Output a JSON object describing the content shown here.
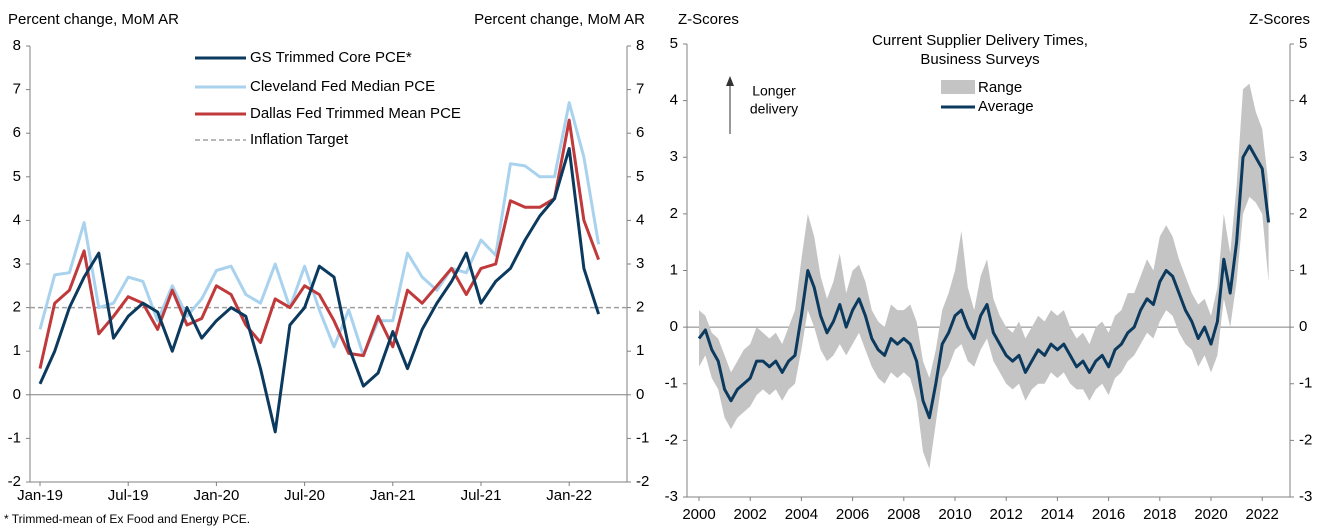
{
  "chart_data": [
    {
      "type": "line",
      "ylabel": "Percent change, MoM AR",
      "y2label": "Percent change, MoM AR",
      "categories": [
        "Jan-19",
        null,
        null,
        null,
        null,
        null,
        "Jul-19",
        null,
        null,
        null,
        null,
        null,
        "Jan-20",
        null,
        null,
        null,
        null,
        null,
        "Jul-20",
        null,
        null,
        null,
        null,
        null,
        "Jan-21",
        null,
        null,
        null,
        null,
        null,
        "Jul-21",
        null,
        null,
        null,
        null,
        null,
        "Jan-22",
        null,
        null
      ],
      "series": [
        {
          "name": "GS Trimmed Core PCE*",
          "color": "#0b3a5e",
          "values": [
            0.25,
            1.0,
            2.0,
            2.7,
            3.25,
            1.3,
            1.8,
            2.1,
            1.9,
            1.0,
            2.0,
            1.3,
            1.7,
            2.0,
            1.8,
            0.6,
            -0.85,
            1.6,
            2.0,
            2.95,
            2.7,
            1.1,
            0.2,
            0.5,
            1.45,
            0.6,
            1.5,
            2.1,
            2.6,
            3.25,
            2.1,
            2.6,
            2.9,
            3.55,
            4.1,
            4.5,
            5.65,
            2.9,
            1.85
          ]
        },
        {
          "name": "Cleveland Fed Median PCE",
          "color": "#a9d2ee",
          "values": [
            1.5,
            2.75,
            2.8,
            3.95,
            2.0,
            2.1,
            2.7,
            2.6,
            1.7,
            2.5,
            1.8,
            2.2,
            2.85,
            2.95,
            2.3,
            2.1,
            3.0,
            2.0,
            2.95,
            1.95,
            1.1,
            1.95,
            0.9,
            1.7,
            1.7,
            3.25,
            2.7,
            2.4,
            2.9,
            2.8,
            3.55,
            3.2,
            5.3,
            5.25,
            5.0,
            5.0,
            6.7,
            5.45,
            3.45
          ]
        },
        {
          "name": "Dallas Fed Trimmed Mean PCE",
          "color": "#c0393b",
          "values": [
            0.6,
            2.1,
            2.4,
            3.3,
            1.4,
            1.8,
            2.25,
            2.1,
            1.5,
            2.4,
            1.6,
            1.75,
            2.5,
            2.3,
            1.6,
            1.2,
            2.2,
            2.0,
            2.5,
            2.3,
            1.7,
            0.95,
            0.9,
            1.8,
            1.1,
            2.4,
            2.1,
            2.5,
            2.9,
            2.3,
            2.9,
            3.0,
            4.45,
            4.3,
            4.3,
            4.5,
            6.3,
            4.0,
            3.1
          ]
        }
      ],
      "reference_line": {
        "name": "Inflation Target",
        "value": 2,
        "color": "#a0a0a0"
      },
      "ylim": [
        -2,
        8
      ],
      "yticks": [
        -2,
        -1,
        0,
        1,
        2,
        3,
        4,
        5,
        6,
        7,
        8
      ],
      "y2lim": [
        -2,
        8
      ],
      "y2ticks": [
        -2,
        -1,
        0,
        1,
        2,
        3,
        4,
        5,
        6,
        7,
        8
      ],
      "footnote": "* Trimmed-mean of Ex Food and Energy PCE."
    },
    {
      "type": "range_line",
      "title": [
        "Current Supplier Delivery Times,",
        "Business Surveys"
      ],
      "ylabel": "Z-Scores",
      "y2label": "Z-Scores",
      "annotation": [
        "Longer",
        "delivery"
      ],
      "x": [
        2000,
        2000.25,
        2000.5,
        2000.75,
        2001,
        2001.25,
        2001.5,
        2001.75,
        2002,
        2002.25,
        2002.5,
        2002.75,
        2003,
        2003.25,
        2003.5,
        2003.75,
        2004,
        2004.25,
        2004.5,
        2004.75,
        2005,
        2005.25,
        2005.5,
        2005.75,
        2006,
        2006.25,
        2006.5,
        2006.75,
        2007,
        2007.25,
        2007.5,
        2007.75,
        2008,
        2008.25,
        2008.5,
        2008.75,
        2009,
        2009.25,
        2009.5,
        2009.75,
        2010,
        2010.25,
        2010.5,
        2010.75,
        2011,
        2011.25,
        2011.5,
        2011.75,
        2012,
        2012.25,
        2012.5,
        2012.75,
        2013,
        2013.25,
        2013.5,
        2013.75,
        2014,
        2014.25,
        2014.5,
        2014.75,
        2015,
        2015.25,
        2015.5,
        2015.75,
        2016,
        2016.25,
        2016.5,
        2016.75,
        2017,
        2017.25,
        2017.5,
        2017.75,
        2018,
        2018.25,
        2018.5,
        2018.75,
        2019,
        2019.25,
        2019.5,
        2019.75,
        2020,
        2020.25,
        2020.5,
        2020.75,
        2021,
        2021.25,
        2021.5,
        2021.75,
        2022,
        2022.25
      ],
      "range": {
        "name": "Range",
        "color": "#c4c4c4",
        "high": [
          0.3,
          0.2,
          -0.1,
          -0.2,
          -0.5,
          -0.8,
          -0.6,
          -0.4,
          -0.3,
          0.0,
          -0.1,
          -0.2,
          -0.1,
          -0.3,
          0.0,
          0.3,
          1.2,
          2.0,
          1.6,
          0.9,
          0.5,
          0.8,
          1.3,
          0.6,
          1.0,
          1.1,
          0.8,
          0.3,
          0.1,
          0.0,
          0.4,
          0.3,
          0.3,
          0.4,
          0.1,
          -0.6,
          -0.9,
          -0.4,
          0.3,
          0.6,
          1.0,
          1.7,
          0.7,
          0.3,
          0.9,
          1.2,
          0.5,
          0.2,
          0.0,
          -0.1,
          0.1,
          -0.2,
          0.0,
          0.2,
          0.1,
          0.3,
          0.2,
          0.3,
          0.0,
          -0.2,
          -0.1,
          -0.3,
          0.0,
          0.1,
          -0.1,
          0.2,
          0.3,
          0.6,
          0.6,
          0.9,
          1.2,
          1.0,
          1.6,
          1.8,
          1.6,
          1.2,
          0.9,
          0.6,
          0.4,
          0.5,
          0.2,
          0.7,
          2.0,
          1.3,
          2.5,
          4.2,
          4.3,
          3.8,
          3.5,
          2.5
        ],
        "low": [
          -0.7,
          -0.5,
          -0.9,
          -1.1,
          -1.6,
          -1.8,
          -1.6,
          -1.5,
          -1.4,
          -1.2,
          -1.1,
          -1.2,
          -1.1,
          -1.3,
          -1.1,
          -1.0,
          -0.4,
          0.3,
          0.0,
          -0.4,
          -0.6,
          -0.5,
          -0.3,
          -0.5,
          -0.3,
          -0.1,
          -0.4,
          -0.7,
          -0.9,
          -1.0,
          -0.8,
          -0.9,
          -0.8,
          -0.9,
          -1.3,
          -2.2,
          -2.5,
          -1.7,
          -0.9,
          -0.7,
          -0.4,
          -0.3,
          -0.6,
          -0.7,
          -0.4,
          -0.2,
          -0.6,
          -0.8,
          -1.0,
          -1.1,
          -1.0,
          -1.3,
          -1.1,
          -1.0,
          -1.0,
          -0.8,
          -0.9,
          -0.8,
          -1.0,
          -1.1,
          -1.1,
          -1.3,
          -1.1,
          -1.0,
          -1.2,
          -0.9,
          -0.8,
          -0.6,
          -0.5,
          -0.3,
          -0.1,
          -0.2,
          0.1,
          0.3,
          0.2,
          -0.1,
          -0.3,
          -0.4,
          -0.7,
          -0.5,
          -0.8,
          -0.5,
          0.5,
          0.0,
          0.8,
          2.0,
          2.3,
          2.2,
          2.0,
          0.8
        ]
      },
      "series": [
        {
          "name": "Average",
          "color": "#0b3a5e",
          "values": [
            -0.2,
            -0.05,
            -0.4,
            -0.6,
            -1.1,
            -1.3,
            -1.1,
            -1.0,
            -0.9,
            -0.6,
            -0.6,
            -0.7,
            -0.6,
            -0.8,
            -0.6,
            -0.5,
            0.2,
            1.0,
            0.7,
            0.2,
            -0.1,
            0.1,
            0.4,
            0.0,
            0.3,
            0.5,
            0.2,
            -0.2,
            -0.4,
            -0.5,
            -0.2,
            -0.3,
            -0.2,
            -0.3,
            -0.6,
            -1.3,
            -1.6,
            -1.0,
            -0.3,
            -0.1,
            0.2,
            0.3,
            0.0,
            -0.2,
            0.2,
            0.4,
            -0.1,
            -0.3,
            -0.5,
            -0.6,
            -0.5,
            -0.8,
            -0.6,
            -0.4,
            -0.5,
            -0.3,
            -0.4,
            -0.3,
            -0.5,
            -0.7,
            -0.6,
            -0.8,
            -0.6,
            -0.5,
            -0.7,
            -0.4,
            -0.3,
            -0.1,
            0.0,
            0.3,
            0.5,
            0.4,
            0.8,
            1.0,
            0.9,
            0.6,
            0.3,
            0.1,
            -0.2,
            0.0,
            -0.3,
            0.1,
            1.2,
            0.6,
            1.5,
            3.0,
            3.2,
            3.0,
            2.8,
            1.85
          ]
        }
      ],
      "xlim": [
        2000,
        2022.6
      ],
      "xticks": [
        2000,
        2002,
        2004,
        2006,
        2008,
        2010,
        2012,
        2014,
        2016,
        2018,
        2020,
        2022
      ],
      "ylim": [
        -3,
        5
      ],
      "yticks": [
        -3,
        -2,
        -1,
        0,
        1,
        2,
        3,
        4,
        5
      ],
      "y2lim": [
        -3,
        5
      ],
      "y2ticks": [
        -3,
        -2,
        -1,
        0,
        1,
        2,
        3,
        4,
        5
      ]
    }
  ]
}
